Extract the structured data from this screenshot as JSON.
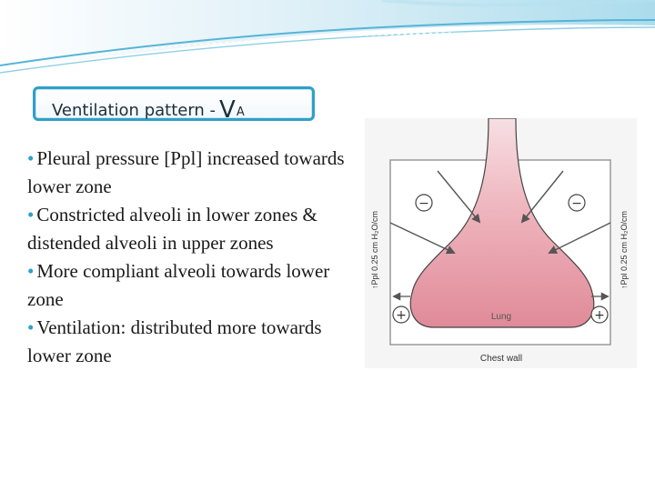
{
  "slide": {
    "title_main": "Ventilation pattern  -",
    "title_symbol": "V",
    "title_subscript": "A",
    "bullets": [
      "Pleural pressure [Ppl] increased towards lower zone",
      "Constricted  alveoli in lower zones & distended alveoli in upper zones",
      "More compliant alveoli towards lower zone",
      "Ventilation: distributed more towards lower zone"
    ],
    "bullet_symbol": "•"
  },
  "figure": {
    "left_axis_label": "↑Ppl 0.25 cm H₂O/cm",
    "right_axis_label": "↑Ppl 0.25 cm H₂O/cm",
    "lung_label": "Lung",
    "chest_wall_label": "Chest wall",
    "minus_sign": "−",
    "plus_sign": "+"
  },
  "colors": {
    "accent": "#2fa0c8",
    "lung_fill_top": "#f4d6dc",
    "lung_fill_bottom": "#e28f9c"
  }
}
